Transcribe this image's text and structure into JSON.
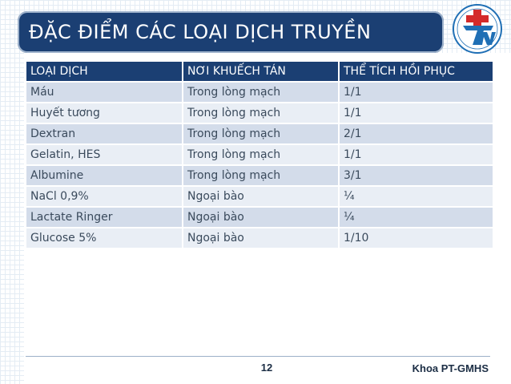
{
  "slide": {
    "title": "ĐẶC ĐIỂM CÁC LOẠI DỊCH TRUYỀN",
    "page_number": "12",
    "department": "Khoa PT-GMHS"
  },
  "logo": {
    "icon": "hospital-tn-logo-icon",
    "letters": "TN",
    "color_red": "#d42a2a",
    "color_blue": "#1f6fb5"
  },
  "table": {
    "headers": [
      "LOẠI DỊCH",
      "NƠI KHUẾCH TÁN",
      "THỂ TÍCH HỒI PHỤC"
    ],
    "rows": [
      [
        "Máu",
        "Trong lòng mạch",
        "1/1"
      ],
      [
        "Huyết tương",
        "Trong lòng mạch",
        "1/1"
      ],
      [
        "Dextran",
        "Trong lòng mạch",
        "2/1"
      ],
      [
        "Gelatin, HES",
        "Trong lòng mạch",
        "1/1"
      ],
      [
        "Albumine",
        "Trong lòng mạch",
        "3/1"
      ],
      [
        "NaCl 0,9%",
        "Ngoại bào",
        "¼"
      ],
      [
        "Lactate Ringer",
        "Ngoại bào",
        "¼"
      ],
      [
        "Glucose 5%",
        "Ngoại bào",
        "1/10"
      ]
    ]
  },
  "colors": {
    "header_bg": "#1b3f73",
    "row_dark": "#d3dcea",
    "row_light": "#e9eef5"
  }
}
